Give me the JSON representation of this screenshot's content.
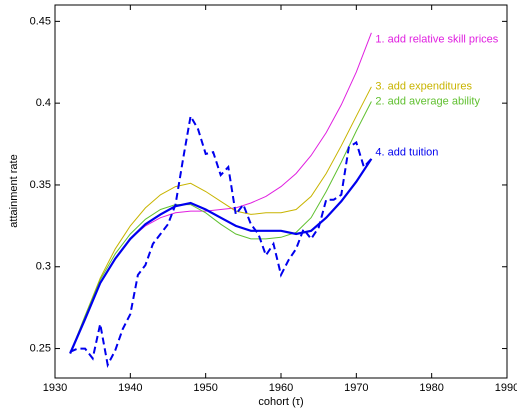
{
  "chart_data": {
    "type": "line",
    "xlabel": "cohort (τ)",
    "ylabel": "attainment rate",
    "xlim": [
      1930,
      1990
    ],
    "xticks": [
      1930,
      1940,
      1950,
      1960,
      1970,
      1980,
      1990
    ],
    "ylim": [
      0.232,
      0.46
    ],
    "yticks": [
      0.25,
      0.3,
      0.35,
      0.4,
      0.45
    ],
    "series": [
      {
        "name": "1. add relative skill prices",
        "color": "#e020e0",
        "style": "solid",
        "x": [
          1932,
          1934,
          1936,
          1938,
          1940,
          1942,
          1944,
          1946,
          1948,
          1950,
          1952,
          1954,
          1956,
          1958,
          1960,
          1962,
          1964,
          1966,
          1968,
          1970,
          1972
        ],
        "values": [
          0.247,
          0.268,
          0.29,
          0.305,
          0.317,
          0.325,
          0.33,
          0.333,
          0.334,
          0.334,
          0.335,
          0.336,
          0.339,
          0.343,
          0.349,
          0.357,
          0.368,
          0.382,
          0.399,
          0.419,
          0.443
        ]
      },
      {
        "name": "3. add expenditures",
        "color": "#c8b400",
        "style": "solid",
        "x": [
          1932,
          1934,
          1936,
          1938,
          1940,
          1942,
          1944,
          1946,
          1948,
          1950,
          1952,
          1954,
          1956,
          1958,
          1960,
          1962,
          1964,
          1966,
          1968,
          1970,
          1972
        ],
        "values": [
          0.247,
          0.27,
          0.293,
          0.311,
          0.325,
          0.336,
          0.344,
          0.349,
          0.351,
          0.346,
          0.34,
          0.334,
          0.332,
          0.333,
          0.333,
          0.335,
          0.343,
          0.357,
          0.374,
          0.392,
          0.41
        ]
      },
      {
        "name": "2. add average ability",
        "color": "#60c030",
        "style": "solid",
        "x": [
          1932,
          1934,
          1936,
          1938,
          1940,
          1942,
          1944,
          1946,
          1948,
          1950,
          1952,
          1954,
          1956,
          1958,
          1960,
          1962,
          1964,
          1966,
          1968,
          1970,
          1972
        ],
        "values": [
          0.247,
          0.27,
          0.292,
          0.308,
          0.32,
          0.329,
          0.335,
          0.338,
          0.338,
          0.333,
          0.326,
          0.32,
          0.317,
          0.317,
          0.318,
          0.321,
          0.33,
          0.346,
          0.364,
          0.383,
          0.401
        ]
      },
      {
        "name": "4. add tuition",
        "color": "#0000ee",
        "style": "solid",
        "x": [
          1932,
          1934,
          1936,
          1938,
          1940,
          1942,
          1944,
          1946,
          1948,
          1950,
          1952,
          1954,
          1956,
          1958,
          1960,
          1962,
          1964,
          1966,
          1968,
          1970,
          1972
        ],
        "values": [
          0.247,
          0.268,
          0.29,
          0.305,
          0.317,
          0.326,
          0.332,
          0.337,
          0.339,
          0.335,
          0.33,
          0.325,
          0.322,
          0.322,
          0.322,
          0.32,
          0.322,
          0.33,
          0.34,
          0.352,
          0.366
        ]
      },
      {
        "color": "#0000ee",
        "style": "dashed",
        "x": [
          1932,
          1933,
          1934,
          1935,
          1936,
          1937,
          1938,
          1939,
          1940,
          1941,
          1942,
          1943,
          1944,
          1945,
          1946,
          1947,
          1948,
          1949,
          1950,
          1951,
          1952,
          1953,
          1954,
          1955,
          1956,
          1957,
          1958,
          1959,
          1960,
          1961,
          1962,
          1963,
          1964,
          1965,
          1966,
          1967,
          1968,
          1969,
          1970,
          1971,
          1972
        ],
        "values": [
          0.248,
          0.25,
          0.25,
          0.244,
          0.265,
          0.24,
          0.249,
          0.262,
          0.271,
          0.295,
          0.301,
          0.314,
          0.32,
          0.326,
          0.338,
          0.366,
          0.392,
          0.384,
          0.369,
          0.37,
          0.356,
          0.361,
          0.332,
          0.338,
          0.326,
          0.32,
          0.307,
          0.314,
          0.295,
          0.304,
          0.311,
          0.323,
          0.317,
          0.324,
          0.341,
          0.341,
          0.344,
          0.373,
          0.376,
          0.361,
          0.366
        ]
      }
    ]
  }
}
